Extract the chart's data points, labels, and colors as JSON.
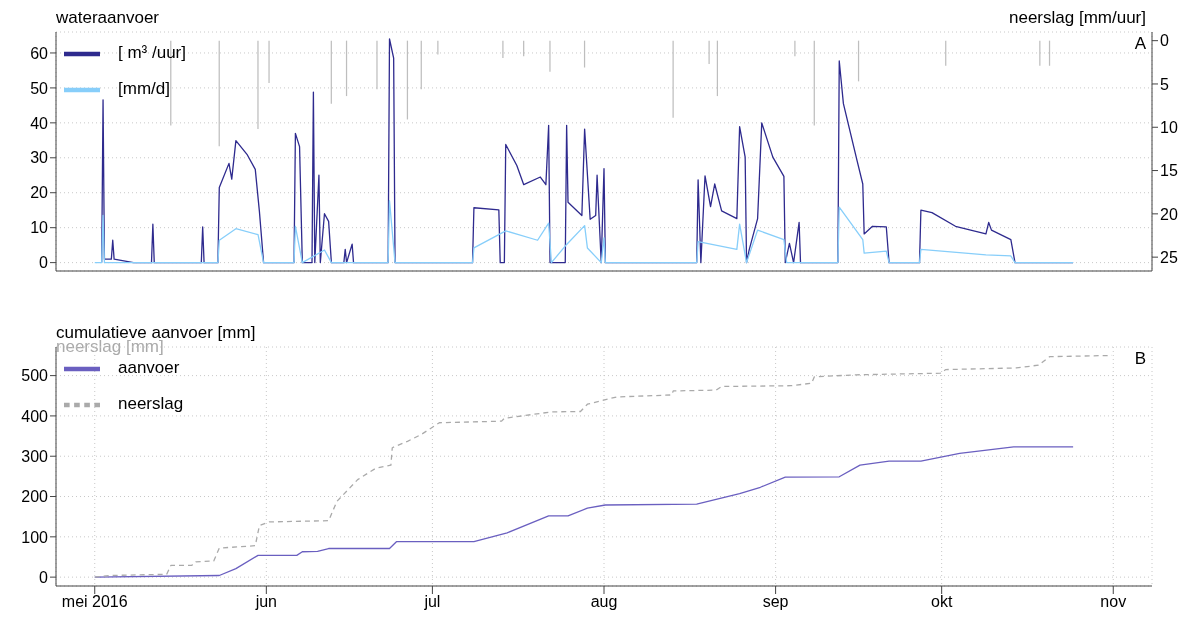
{
  "chart_data": [
    {
      "type": "line",
      "title": "wateraanvoer",
      "y2label": "neerslag [mm/uur]",
      "annotations": [
        "A"
      ],
      "xlim": [
        "2016-04-24",
        "2016-11-08"
      ],
      "xticks": [
        {
          "value": "2016-05-01",
          "label": null
        },
        {
          "value": "2016-06-01",
          "label": null
        },
        {
          "value": "2016-07-01",
          "label": null
        },
        {
          "value": "2016-08-01",
          "label": null
        },
        {
          "value": "2016-09-01",
          "label": null
        },
        {
          "value": "2016-10-01",
          "label": null
        },
        {
          "value": "2016-11-01",
          "label": null
        }
      ],
      "tick_labels": "y",
      "ylim": [
        -2.4,
        66
      ],
      "yticks": [
        0,
        10,
        20,
        30,
        40,
        50,
        60
      ],
      "y2lim": [
        26.6,
        -1
      ],
      "y2ticks": [
        0,
        5,
        10,
        15,
        20,
        25
      ],
      "grid": true,
      "legend": "top left",
      "series": [
        {
          "name": "[ m³ /uur]",
          "color": "#2e2a8e",
          "x": [
            "2016-05-02T06:00",
            "2016-05-02T12:00",
            "2016-05-02T18:00",
            "2016-05-04",
            "2016-05-04T06:00",
            "2016-05-04T12:00",
            "2016-05-08",
            "2016-05-11T06:00",
            "2016-05-11T12:00",
            "2016-05-11T18:00",
            "2016-05-20T06:00",
            "2016-05-20T12:00",
            "2016-05-20T18:00",
            "2016-05-23T06:00",
            "2016-05-23T12:00",
            "2016-05-25T06:00",
            "2016-05-25T18:00",
            "2016-05-26T12:00",
            "2016-05-28T12:00",
            "2016-05-30",
            "2016-05-30T18:00",
            "2016-05-31T12:00",
            "2016-06-06",
            "2016-06-06T06:00",
            "2016-06-07",
            "2016-06-07T12:00",
            "2016-06-09T06:00",
            "2016-06-09T12:00",
            "2016-06-09T18:00",
            "2016-06-10T12:00",
            "2016-06-10T18:00",
            "2016-06-11T12:00",
            "2016-06-12T06:00",
            "2016-06-12T18:00",
            "2016-06-15",
            "2016-06-15T06:00",
            "2016-06-15T12:00",
            "2016-06-16T12:00",
            "2016-06-16T18:00",
            "2016-06-23",
            "2016-06-23T06:00",
            "2016-06-24",
            "2016-06-24T06:00",
            "2016-07-08T06:00",
            "2016-07-08T12:00",
            "2016-07-13",
            "2016-07-13T06:00",
            "2016-07-14",
            "2016-07-14T06:00",
            "2016-07-16T06:00",
            "2016-07-17T12:00",
            "2016-07-20T12:00",
            "2016-07-21T12:00",
            "2016-07-22",
            "2016-07-22T06:00",
            "2016-07-25",
            "2016-07-25T06:00",
            "2016-07-25T12:00",
            "2016-07-28",
            "2016-07-28T12:00",
            "2016-07-29T12:00",
            "2016-07-30T12:00",
            "2016-07-30T18:00",
            "2016-07-31T12:00",
            "2016-08-01",
            "2016-08-01T06:00",
            "2016-08-17T18:00",
            "2016-08-18",
            "2016-08-18T12:00",
            "2016-08-19T06:00",
            "2016-08-20T06:00",
            "2016-08-21",
            "2016-08-22T06:00",
            "2016-08-25",
            "2016-08-25T12:00",
            "2016-08-26T12:00",
            "2016-08-26T18:00",
            "2016-08-27T06:00",
            "2016-08-28T18:00",
            "2016-08-29T12:00",
            "2016-08-31T12:00",
            "2016-09-02T12:00",
            "2016-09-02T18:00",
            "2016-09-03T12:00",
            "2016-09-04T06:00",
            "2016-09-05T06:00",
            "2016-09-05T12:00",
            "2016-09-12T06:00",
            "2016-09-12T12:00",
            "2016-09-13T06:00",
            "2016-09-15T18:00",
            "2016-09-16T18:00",
            "2016-09-17",
            "2016-09-18T12:00",
            "2016-09-21",
            "2016-09-21T12:00",
            "2016-09-27",
            "2016-09-27T06:00",
            "2016-09-29T06:00",
            "2016-10-03T12:00",
            "2016-10-09",
            "2016-10-09T12:00",
            "2016-10-10",
            "2016-10-13T12:00",
            "2016-10-14T06:00",
            "2016-10-24T18:00"
          ],
          "values": [
            0,
            46.6,
            1,
            1,
            6.4,
            1,
            0,
            0,
            11,
            0,
            0,
            10.2,
            0,
            0,
            21.5,
            28.4,
            23.9,
            34.9,
            31,
            26.7,
            14.6,
            0,
            0,
            37,
            33.2,
            0,
            0,
            48.8,
            0,
            25,
            0,
            14,
            11.8,
            0,
            0,
            3.8,
            0,
            5.3,
            0,
            0,
            64,
            58.5,
            0,
            0,
            15.7,
            15.1,
            0,
            0,
            33.8,
            27.8,
            22.3,
            24.5,
            22.3,
            39.3,
            0,
            0,
            39.3,
            17.3,
            13.5,
            38.2,
            12.4,
            13.5,
            25,
            0,
            26.9,
            0,
            0,
            23.7,
            0,
            24.8,
            16,
            22.5,
            14.8,
            12.6,
            38.9,
            30.2,
            0,
            3.8,
            12.6,
            40,
            30.2,
            24.7,
            0,
            5.5,
            0,
            11.5,
            0,
            0,
            57.7,
            45.5,
            29,
            22.5,
            8.2,
            10.4,
            10.2,
            0,
            0,
            15,
            14.3,
            10.4,
            8.2,
            11.5,
            9.3,
            6.6,
            0,
            0
          ]
        },
        {
          "name": "[mm/d]",
          "color": "#87cefa",
          "x": [
            "2016-05-01",
            "2016-05-02T06:00",
            "2016-05-02T12:00",
            "2016-05-02T18:00",
            "2016-05-23T06:00",
            "2016-05-23T12:00",
            "2016-05-26T12:00",
            "2016-05-30T12:00",
            "2016-05-31T12:00",
            "2016-06-06",
            "2016-06-06T06:00",
            "2016-06-07T12:00",
            "2016-06-11T12:00",
            "2016-06-12T18:00",
            "2016-06-23",
            "2016-06-23T06:00",
            "2016-06-24T06:00",
            "2016-07-08T06:00",
            "2016-07-08T12:00",
            "2016-07-14T06:00",
            "2016-07-20",
            "2016-07-22",
            "2016-07-22T12:00",
            "2016-07-25T06:00",
            "2016-07-28T12:00",
            "2016-07-29",
            "2016-07-31T12:00",
            "2016-08-01",
            "2016-08-01T06:00",
            "2016-08-17T18:00",
            "2016-08-18",
            "2016-08-25",
            "2016-08-25T12:00",
            "2016-08-26T18:00",
            "2016-08-28T18:00",
            "2016-09-02T12:00",
            "2016-09-03",
            "2016-09-12T06:00",
            "2016-09-12T12:00",
            "2016-09-16T18:00",
            "2016-09-17",
            "2016-09-21",
            "2016-09-21T12:00",
            "2016-09-27",
            "2016-09-27T06:00",
            "2016-10-09",
            "2016-10-13T12:00",
            "2016-10-14T06:00",
            "2016-10-24T18:00"
          ],
          "values": [
            0,
            0,
            13.5,
            0,
            0,
            6.4,
            9.7,
            8,
            0,
            0,
            10.4,
            0,
            3.6,
            0,
            0,
            17.7,
            0,
            0,
            4.2,
            9.1,
            6.4,
            11.3,
            0,
            5.2,
            10.6,
            4.2,
            0,
            7.1,
            0,
            0,
            6,
            3.8,
            11,
            0,
            9.3,
            6.6,
            0,
            0,
            15.9,
            6.6,
            2.7,
            3.3,
            0,
            0,
            3.8,
            2.2,
            1.9,
            0,
            0
          ]
        },
        {
          "type": "bar",
          "axis": "y2",
          "color": "#bebebe",
          "x": [
            "2016-05-14T18:00",
            "2016-05-23T12:00",
            "2016-05-30T12:00",
            "2016-06-01T12:00",
            "2016-06-12T18:00",
            "2016-06-15T12:00",
            "2016-06-21",
            "2016-06-26T12:00",
            "2016-06-29",
            "2016-07-02",
            "2016-07-13T18:00",
            "2016-07-17T12:00",
            "2016-07-22T06:00",
            "2016-07-28T12:00",
            "2016-08-13T12:00",
            "2016-08-20",
            "2016-08-21T12:00",
            "2016-09-04T12:00",
            "2016-09-08",
            "2016-09-16",
            "2016-10-01T18:00",
            "2016-10-18T18:00",
            "2016-10-20T12:00"
          ],
          "values": [
            9.8,
            12.2,
            10.2,
            4.9,
            7.3,
            6.4,
            5.6,
            9.1,
            5.6,
            1.6,
            2,
            1.8,
            3.6,
            3.1,
            8.9,
            2.7,
            6.4,
            1.8,
            9.8,
            4.7,
            2.9,
            2.9,
            2.9
          ]
        }
      ]
    },
    {
      "type": "line",
      "title": "cumulatieve aanvoer [mm]",
      "subtitle": "neerslag [mm]",
      "annotations": [
        "B"
      ],
      "xlim": [
        "2016-04-24",
        "2016-11-08"
      ],
      "xticks": [
        {
          "value": "2016-05-01",
          "label": "mei 2016"
        },
        {
          "value": "2016-06-01",
          "label": "jun"
        },
        {
          "value": "2016-07-01",
          "label": "jul"
        },
        {
          "value": "2016-08-01",
          "label": "aug"
        },
        {
          "value": "2016-09-01",
          "label": "sep"
        },
        {
          "value": "2016-10-01",
          "label": "okt"
        },
        {
          "value": "2016-11-01",
          "label": "nov"
        }
      ],
      "ylim": [
        -22,
        571
      ],
      "yticks": [
        0,
        100,
        200,
        300,
        400,
        500
      ],
      "grid": true,
      "legend": "top left",
      "series": [
        {
          "name": "aanvoer",
          "color": "#6a5fc0",
          "x": [
            "2016-05-01",
            "2016-05-23T12:00",
            "2016-05-26T12:00",
            "2016-05-30T12:00",
            "2016-06-06T12:00",
            "2016-06-07T12:00",
            "2016-06-10T06:00",
            "2016-06-12T06:00",
            "2016-06-23T06:00",
            "2016-06-24T12:00",
            "2016-07-08T12:00",
            "2016-07-14T12:00",
            "2016-07-22",
            "2016-07-25T12:00",
            "2016-07-29",
            "2016-08-01T06:00",
            "2016-08-17T18:00",
            "2016-08-25T12:00",
            "2016-08-29T06:00",
            "2016-09-02T18:00",
            "2016-09-12T12:00",
            "2016-09-16T06:00",
            "2016-09-21T12:00",
            "2016-09-27T06:00",
            "2016-10-04T06:00",
            "2016-10-14",
            "2016-10-24T18:00"
          ],
          "values": [
            0,
            4,
            21,
            54,
            54,
            63,
            64,
            71,
            71,
            88,
            88,
            110,
            152,
            152,
            171,
            179,
            181,
            207,
            223,
            248,
            249,
            278,
            288,
            288,
            307,
            323,
            323
          ]
        },
        {
          "name": "neerslag",
          "color": "#aaaaaa",
          "line_style": "dashed",
          "x": [
            "2016-05-01",
            "2016-05-03T12:00",
            "2016-05-14",
            "2016-05-14T18:00",
            "2016-05-18T12:00",
            "2016-05-19T06:00",
            "2016-05-22T12:00",
            "2016-05-23T12:00",
            "2016-05-30",
            "2016-05-30T18:00",
            "2016-06-01T12:00",
            "2016-06-12T06:00",
            "2016-06-13T18:00",
            "2016-06-15T12:00",
            "2016-06-17T12:00",
            "2016-06-20T18:00",
            "2016-06-23T12:00",
            "2016-06-23T18:00",
            "2016-06-26T12:00",
            "2016-06-29",
            "2016-07-02T06:00",
            "2016-07-13T12:00",
            "2016-07-14",
            "2016-07-22T12:00",
            "2016-07-27T18:00",
            "2016-07-29",
            "2016-08-03T06:00",
            "2016-08-13T06:00",
            "2016-08-13T12:00",
            "2016-08-21T06:00",
            "2016-08-22T06:00",
            "2016-09-03T18:00",
            "2016-09-07T12:00",
            "2016-09-08",
            "2016-09-15T12:00",
            "2016-09-30T18:00",
            "2016-10-01T18:00",
            "2016-10-14T12:00",
            "2016-10-18T12:00",
            "2016-10-20T12:00",
            "2016-10-31T18:00"
          ],
          "values": [
            0,
            4,
            7,
            29,
            29,
            38,
            40,
            72,
            78,
            128,
            137,
            140,
            188,
            213,
            242,
            270,
            278,
            321,
            337,
            354,
            383,
            387,
            394,
            410,
            411,
            429,
            447,
            452,
            462,
            464,
            473,
            475,
            481,
            497,
            502,
            506,
            515,
            519,
            526,
            547,
            550
          ]
        }
      ]
    }
  ]
}
